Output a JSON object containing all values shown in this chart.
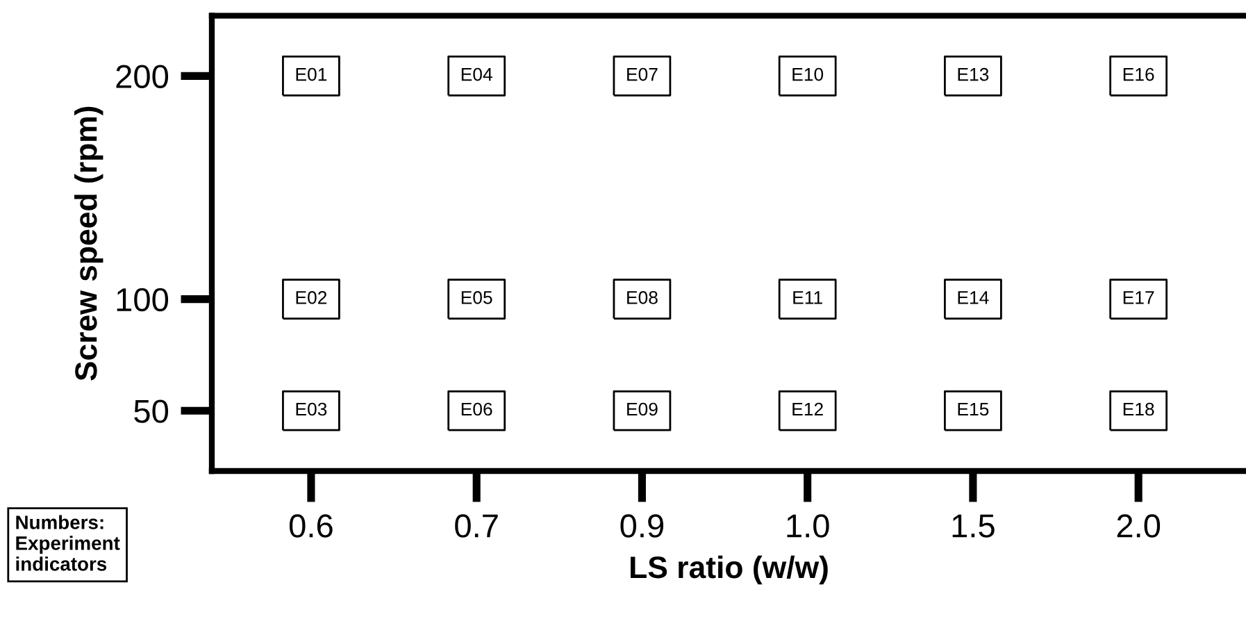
{
  "chart_data": {
    "type": "scatter",
    "xlabel": "LS ratio (w/w)",
    "ylabel": "Screw speed (rpm)",
    "categories": [
      "0.6",
      "0.7",
      "0.9",
      "1.0",
      "1.5",
      "2.0"
    ],
    "ylim": [
      23,
      227
    ],
    "yticks": [
      50,
      100,
      200
    ],
    "marker": "square",
    "series": [
      {
        "color": "#000000",
        "values": [
          200,
          200,
          200,
          200,
          200,
          200
        ],
        "value_labels": [
          "E01",
          "E04",
          "E07",
          "E10",
          "E13",
          "E16"
        ]
      },
      {
        "color": "#000000",
        "values": [
          100,
          100,
          100,
          100,
          100,
          100
        ],
        "value_labels": [
          "E02",
          "E05",
          "E08",
          "E11",
          "E14",
          "E17"
        ]
      },
      {
        "color": "#000000",
        "values": [
          50,
          50,
          50,
          50,
          50,
          50
        ],
        "value_labels": [
          "E03",
          "E06",
          "E09",
          "E12",
          "E15",
          "E18"
        ]
      }
    ],
    "annotations": [
      "Numbers:\nExperiment\nindicators"
    ]
  }
}
